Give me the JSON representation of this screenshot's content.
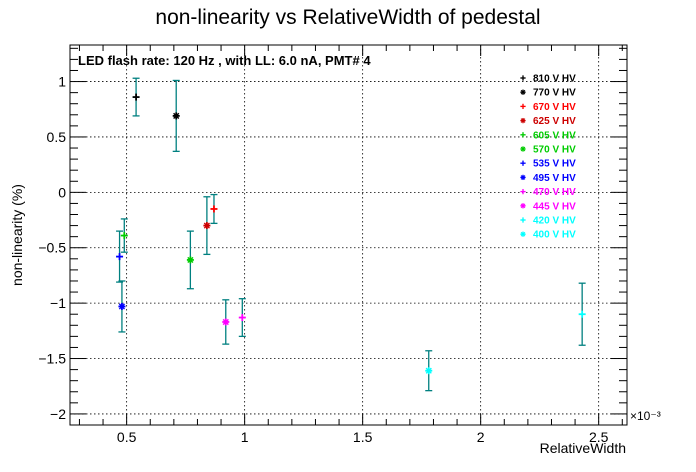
{
  "chart_data": {
    "type": "scatter",
    "title": "non-linearity vs RelativeWidth of pedestal",
    "xlabel": "RelativeWidth",
    "ylabel": "non-linearity (%)",
    "x_exponent_label": "×10⁻³",
    "annotation": "LED flash rate: 120 Hz , with LL: 6.0 nA, PMT# 4",
    "xlim": [
      0.26,
      2.62
    ],
    "ylim": [
      -2.1,
      1.33
    ],
    "x_ticks": [
      0.5,
      1,
      1.5,
      2,
      2.5
    ],
    "x_tick_labels": [
      "0.5",
      "1",
      "1.5",
      "2",
      "2.5"
    ],
    "y_ticks": [
      -2,
      -1.5,
      -1,
      -0.5,
      0,
      0.5,
      1
    ],
    "y_tick_labels": [
      "−2",
      "−1.5",
      "−1",
      "−0.5",
      "0",
      "0.5",
      "1"
    ],
    "grid": true,
    "legend_position": "top-right",
    "error_bar_color": "#008080",
    "series": [
      {
        "name": "810 V HV",
        "color": "#000000",
        "marker": "plus",
        "x": 0.54,
        "y": 0.86,
        "yerr": 0.17
      },
      {
        "name": "770 V HV",
        "color": "#000000",
        "marker": "star",
        "x": 0.71,
        "y": 0.69,
        "yerr": 0.32
      },
      {
        "name": "670 V HV",
        "color": "#ff0000",
        "marker": "plus",
        "x": 0.87,
        "y": -0.15,
        "yerr": 0.13
      },
      {
        "name": "625 V HV",
        "color": "#cc0000",
        "marker": "star",
        "x": 0.84,
        "y": -0.3,
        "yerr": 0.26
      },
      {
        "name": "605 V HV",
        "color": "#00cc00",
        "marker": "plus",
        "x": 0.49,
        "y": -0.39,
        "yerr": 0.15
      },
      {
        "name": "570 V HV",
        "color": "#00cc00",
        "marker": "star",
        "x": 0.77,
        "y": -0.61,
        "yerr": 0.26
      },
      {
        "name": "535 V HV",
        "color": "#0000ff",
        "marker": "plus",
        "x": 0.47,
        "y": -0.58,
        "yerr": 0.23
      },
      {
        "name": "495 V HV",
        "color": "#0000ff",
        "marker": "star",
        "x": 0.48,
        "y": -1.03,
        "yerr": 0.23
      },
      {
        "name": "470 V HV",
        "color": "#ff00ff",
        "marker": "plus",
        "x": 0.99,
        "y": -1.13,
        "yerr": 0.17
      },
      {
        "name": "445 V HV",
        "color": "#ff00ff",
        "marker": "star",
        "x": 0.92,
        "y": -1.17,
        "yerr": 0.2
      },
      {
        "name": "420 V HV",
        "color": "#00ffff",
        "marker": "plus",
        "x": 2.43,
        "y": -1.1,
        "yerr": 0.28
      },
      {
        "name": "400 V HV",
        "color": "#00ffff",
        "marker": "star",
        "x": 1.78,
        "y": -1.61,
        "yerr": 0.18
      }
    ]
  }
}
